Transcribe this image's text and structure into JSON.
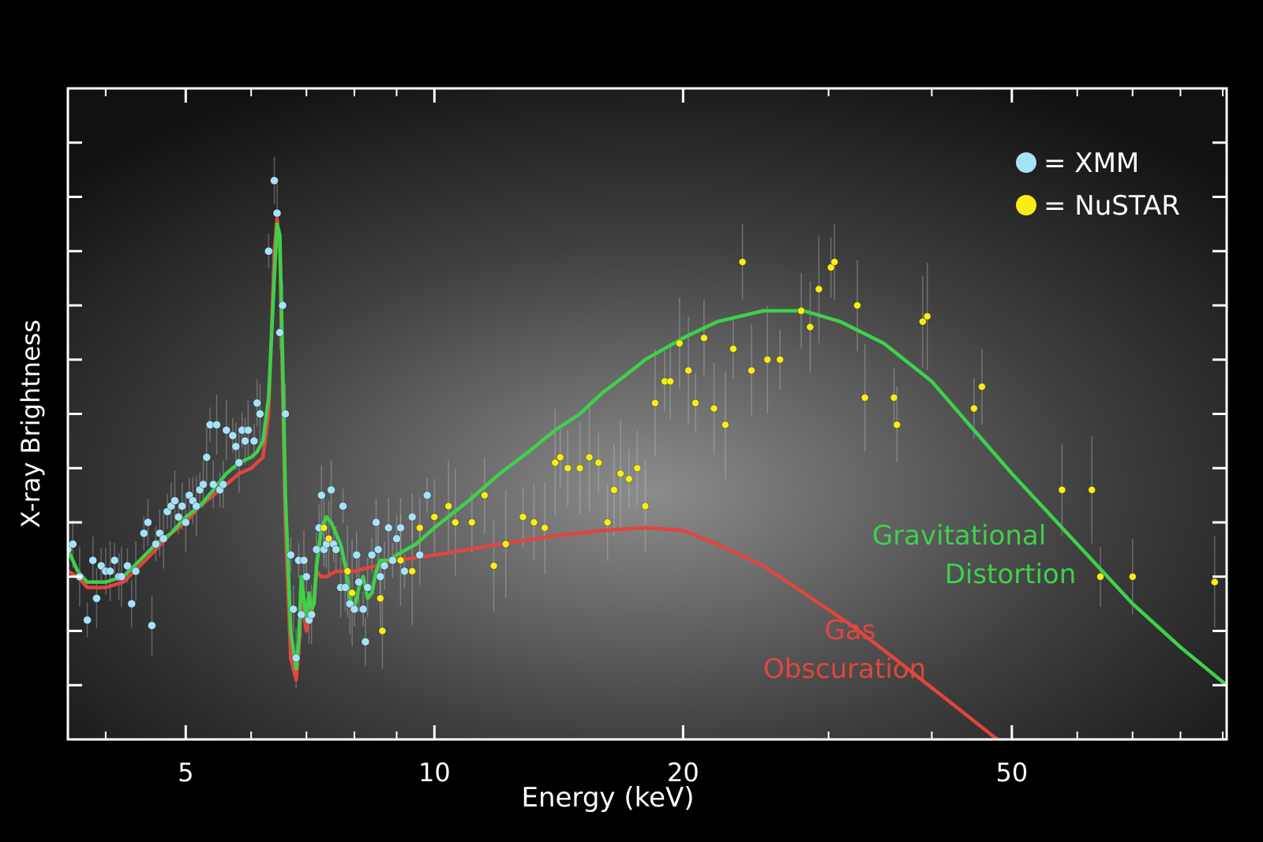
{
  "chart_data": {
    "type": "scatter",
    "title": "",
    "xlabel": "Energy (keV)",
    "ylabel": "X-ray Brightness",
    "xscale": "log",
    "xlim": [
      3.6,
      91
    ],
    "ylim": [
      0,
      12
    ],
    "x_tick_labels": [
      {
        "value": 5,
        "label": "5"
      },
      {
        "value": 10,
        "label": "10"
      },
      {
        "value": 20,
        "label": "20"
      },
      {
        "value": 50,
        "label": "50"
      }
    ],
    "x_minor_ticks": [
      4,
      6,
      7,
      8,
      9,
      30,
      40,
      60,
      70,
      80,
      90
    ],
    "y_ticks": [
      1,
      2,
      3,
      4,
      5,
      6,
      7,
      8,
      9,
      10,
      11
    ],
    "grid": false,
    "legend": {
      "position": "top-right",
      "entries": [
        {
          "label": "= XMM",
          "color": "#a6e2f8"
        },
        {
          "label": "= NuSTAR",
          "color": "#f8ee16"
        }
      ]
    },
    "colors": {
      "xmm": "#a6e2f8",
      "nustar": "#f8ee16",
      "gravitational": "#3ed14a",
      "gas": "#e0463e",
      "background_center": "#808080"
    },
    "series": [
      {
        "name": "Gravitational Distortion",
        "kind": "line",
        "color": "#3ed14a",
        "points": [
          [
            3.6,
            3.5
          ],
          [
            3.7,
            3.1
          ],
          [
            3.8,
            2.9
          ],
          [
            4.0,
            2.9
          ],
          [
            4.2,
            3.0
          ],
          [
            4.4,
            3.3
          ],
          [
            4.6,
            3.6
          ],
          [
            4.8,
            3.8
          ],
          [
            5.0,
            4.1
          ],
          [
            5.2,
            4.3
          ],
          [
            5.4,
            4.6
          ],
          [
            5.6,
            4.9
          ],
          [
            5.8,
            5.1
          ],
          [
            6.0,
            5.2
          ],
          [
            6.1,
            5.3
          ],
          [
            6.2,
            5.5
          ],
          [
            6.3,
            6.3
          ],
          [
            6.4,
            8.5
          ],
          [
            6.45,
            9.5
          ],
          [
            6.5,
            9.3
          ],
          [
            6.55,
            7.0
          ],
          [
            6.6,
            4.5
          ],
          [
            6.7,
            2.0
          ],
          [
            6.8,
            1.3
          ],
          [
            6.85,
            1.8
          ],
          [
            6.9,
            3.0
          ],
          [
            6.95,
            2.6
          ],
          [
            7.0,
            2.2
          ],
          [
            7.05,
            2.7
          ],
          [
            7.1,
            2.4
          ],
          [
            7.15,
            2.5
          ],
          [
            7.2,
            3.2
          ],
          [
            7.3,
            3.9
          ],
          [
            7.4,
            4.1
          ],
          [
            7.5,
            4.0
          ],
          [
            7.6,
            3.8
          ],
          [
            7.7,
            3.6
          ],
          [
            7.8,
            3.2
          ],
          [
            7.9,
            2.6
          ],
          [
            8.0,
            2.4
          ],
          [
            8.1,
            2.8
          ],
          [
            8.2,
            3.0
          ],
          [
            8.3,
            2.6
          ],
          [
            8.4,
            2.7
          ],
          [
            8.5,
            3.1
          ],
          [
            8.6,
            3.3
          ],
          [
            8.8,
            3.3
          ],
          [
            9.0,
            3.4
          ],
          [
            9.5,
            3.6
          ],
          [
            10,
            3.9
          ],
          [
            11,
            4.4
          ],
          [
            12,
            4.9
          ],
          [
            13,
            5.3
          ],
          [
            14,
            5.7
          ],
          [
            15,
            6.0
          ],
          [
            16,
            6.4
          ],
          [
            17,
            6.7
          ],
          [
            18,
            7.0
          ],
          [
            20,
            7.4
          ],
          [
            22,
            7.7
          ],
          [
            25,
            7.9
          ],
          [
            28,
            7.9
          ],
          [
            31,
            7.7
          ],
          [
            35,
            7.3
          ],
          [
            40,
            6.6
          ],
          [
            45,
            5.7
          ],
          [
            50,
            4.9
          ],
          [
            60,
            3.6
          ],
          [
            70,
            2.5
          ],
          [
            80,
            1.7
          ],
          [
            91,
            1.0
          ]
        ]
      },
      {
        "name": "Gas Obscuration",
        "kind": "line",
        "color": "#e0463e",
        "points": [
          [
            3.6,
            3.1
          ],
          [
            3.7,
            3.0
          ],
          [
            3.8,
            2.8
          ],
          [
            4.0,
            2.8
          ],
          [
            4.2,
            2.9
          ],
          [
            4.4,
            3.2
          ],
          [
            4.6,
            3.5
          ],
          [
            4.8,
            3.8
          ],
          [
            5.0,
            4.0
          ],
          [
            5.2,
            4.3
          ],
          [
            5.4,
            4.5
          ],
          [
            5.6,
            4.7
          ],
          [
            5.8,
            4.9
          ],
          [
            6.0,
            5.0
          ],
          [
            6.1,
            5.1
          ],
          [
            6.2,
            5.2
          ],
          [
            6.3,
            6.0
          ],
          [
            6.4,
            9.0
          ],
          [
            6.45,
            9.6
          ],
          [
            6.5,
            9.0
          ],
          [
            6.55,
            6.5
          ],
          [
            6.6,
            4.0
          ],
          [
            6.7,
            1.5
          ],
          [
            6.8,
            1.1
          ],
          [
            6.85,
            1.6
          ],
          [
            6.9,
            2.7
          ],
          [
            6.95,
            2.3
          ],
          [
            7.0,
            2.0
          ],
          [
            7.05,
            2.4
          ],
          [
            7.1,
            2.3
          ],
          [
            7.15,
            2.6
          ],
          [
            7.2,
            3.1
          ],
          [
            7.3,
            3.0
          ],
          [
            7.4,
            3.0
          ],
          [
            7.6,
            3.1
          ],
          [
            7.8,
            3.1
          ],
          [
            8.0,
            3.1
          ],
          [
            8.5,
            3.2
          ],
          [
            9,
            3.3
          ],
          [
            10,
            3.4
          ],
          [
            11,
            3.5
          ],
          [
            12,
            3.6
          ],
          [
            14,
            3.75
          ],
          [
            16,
            3.85
          ],
          [
            18,
            3.9
          ],
          [
            20,
            3.85
          ],
          [
            22,
            3.6
          ],
          [
            25,
            3.2
          ],
          [
            28,
            2.7
          ],
          [
            32,
            2.1
          ],
          [
            36,
            1.5
          ],
          [
            42,
            0.7
          ],
          [
            48,
            0.0
          ]
        ]
      },
      {
        "name": "= XMM",
        "kind": "scatter",
        "color": "#a6e2f8",
        "points": [
          [
            3.6,
            3.5
          ],
          [
            3.65,
            3.6
          ],
          [
            3.72,
            3.0
          ],
          [
            3.8,
            2.2
          ],
          [
            3.86,
            3.3
          ],
          [
            3.9,
            2.6
          ],
          [
            3.95,
            3.2
          ],
          [
            4.0,
            3.1
          ],
          [
            4.05,
            3.1
          ],
          [
            4.1,
            3.3
          ],
          [
            4.15,
            3.0
          ],
          [
            4.18,
            3.0
          ],
          [
            4.25,
            3.2
          ],
          [
            4.3,
            2.5
          ],
          [
            4.35,
            3.1
          ],
          [
            4.45,
            3.8
          ],
          [
            4.5,
            4.0
          ],
          [
            4.55,
            2.1
          ],
          [
            4.6,
            3.6
          ],
          [
            4.65,
            3.8
          ],
          [
            4.7,
            3.7
          ],
          [
            4.75,
            4.2
          ],
          [
            4.8,
            4.3
          ],
          [
            4.85,
            4.4
          ],
          [
            4.9,
            4.1
          ],
          [
            4.95,
            4.3
          ],
          [
            5.0,
            4.0
          ],
          [
            5.05,
            4.5
          ],
          [
            5.1,
            4.4
          ],
          [
            5.15,
            4.3
          ],
          [
            5.2,
            4.6
          ],
          [
            5.25,
            4.7
          ],
          [
            5.3,
            5.2
          ],
          [
            5.35,
            5.8
          ],
          [
            5.4,
            4.7
          ],
          [
            5.45,
            5.8
          ],
          [
            5.5,
            4.6
          ],
          [
            5.55,
            4.7
          ],
          [
            5.6,
            5.7
          ],
          [
            5.7,
            5.6
          ],
          [
            5.75,
            5.4
          ],
          [
            5.8,
            5.1
          ],
          [
            5.85,
            5.7
          ],
          [
            5.9,
            5.5
          ],
          [
            5.95,
            5.7
          ],
          [
            6.05,
            5.5
          ],
          [
            6.1,
            6.2
          ],
          [
            6.15,
            6.0
          ],
          [
            6.3,
            9.0
          ],
          [
            6.4,
            10.3
          ],
          [
            6.45,
            9.7
          ],
          [
            6.5,
            7.5
          ],
          [
            6.55,
            8.0
          ],
          [
            6.6,
            6.0
          ],
          [
            6.7,
            3.4
          ],
          [
            6.75,
            2.4
          ],
          [
            6.8,
            1.5
          ],
          [
            6.85,
            3.3
          ],
          [
            6.9,
            2.3
          ],
          [
            6.95,
            3.3
          ],
          [
            7.0,
            3.0
          ],
          [
            7.05,
            2.2
          ],
          [
            7.1,
            2.3
          ],
          [
            7.2,
            3.5
          ],
          [
            7.25,
            3.9
          ],
          [
            7.3,
            4.5
          ],
          [
            7.35,
            3.5
          ],
          [
            7.4,
            3.6
          ],
          [
            7.5,
            4.6
          ],
          [
            7.55,
            3.6
          ],
          [
            7.6,
            3.5
          ],
          [
            7.7,
            2.8
          ],
          [
            7.75,
            4.3
          ],
          [
            7.8,
            2.8
          ],
          [
            7.9,
            2.5
          ],
          [
            8.0,
            2.4
          ],
          [
            8.05,
            3.4
          ],
          [
            8.1,
            2.9
          ],
          [
            8.2,
            2.4
          ],
          [
            8.25,
            1.8
          ],
          [
            8.3,
            2.8
          ],
          [
            8.4,
            3.4
          ],
          [
            8.5,
            4.0
          ],
          [
            8.55,
            3.5
          ],
          [
            8.6,
            3.0
          ],
          [
            8.7,
            3.2
          ],
          [
            8.8,
            3.9
          ],
          [
            8.9,
            3.3
          ],
          [
            9.0,
            3.7
          ],
          [
            9.1,
            3.9
          ],
          [
            9.2,
            3.1
          ],
          [
            9.4,
            4.1
          ],
          [
            9.6,
            3.4
          ],
          [
            9.8,
            4.5
          ]
        ]
      },
      {
        "name": "= NuSTAR",
        "kind": "scatter",
        "color": "#f8ee16",
        "points": [
          [
            7.35,
            3.9
          ],
          [
            7.45,
            3.7
          ],
          [
            7.85,
            3.1
          ],
          [
            7.95,
            2.7
          ],
          [
            8.6,
            2.6
          ],
          [
            8.65,
            2.0
          ],
          [
            9.1,
            3.3
          ],
          [
            9.4,
            3.1
          ],
          [
            9.6,
            3.9
          ],
          [
            10.0,
            4.1
          ],
          [
            10.4,
            4.3
          ],
          [
            10.6,
            4.0
          ],
          [
            11.1,
            4.0
          ],
          [
            11.5,
            4.5
          ],
          [
            11.8,
            3.2
          ],
          [
            12.2,
            3.6
          ],
          [
            12.8,
            4.1
          ],
          [
            13.2,
            4.0
          ],
          [
            13.6,
            3.9
          ],
          [
            14.0,
            5.1
          ],
          [
            14.2,
            5.2
          ],
          [
            14.5,
            5.0
          ],
          [
            15.0,
            5.0
          ],
          [
            15.4,
            5.2
          ],
          [
            15.8,
            5.1
          ],
          [
            16.2,
            4.0
          ],
          [
            16.5,
            4.6
          ],
          [
            16.8,
            4.9
          ],
          [
            17.2,
            4.8
          ],
          [
            17.6,
            5.0
          ],
          [
            18.0,
            4.3
          ],
          [
            18.5,
            6.2
          ],
          [
            19.0,
            6.6
          ],
          [
            19.3,
            6.6
          ],
          [
            19.8,
            7.3
          ],
          [
            20.3,
            6.8
          ],
          [
            20.7,
            6.2
          ],
          [
            21.2,
            7.4
          ],
          [
            21.8,
            6.1
          ],
          [
            22.5,
            5.8
          ],
          [
            23.0,
            7.2
          ],
          [
            23.6,
            8.8
          ],
          [
            24.2,
            6.8
          ],
          [
            25.3,
            7.0
          ],
          [
            26.2,
            7.0
          ],
          [
            27.8,
            7.9
          ],
          [
            28.5,
            7.6
          ],
          [
            29.2,
            8.3
          ],
          [
            30.2,
            8.7
          ],
          [
            30.5,
            8.8
          ],
          [
            32.5,
            8.0
          ],
          [
            33.2,
            6.3
          ],
          [
            36.0,
            6.3
          ],
          [
            36.3,
            5.8
          ],
          [
            39.0,
            7.7
          ],
          [
            39.5,
            7.8
          ],
          [
            45.0,
            6.1
          ],
          [
            46.0,
            6.5
          ],
          [
            57.5,
            4.6
          ],
          [
            62.5,
            4.6
          ],
          [
            64.0,
            3.0
          ],
          [
            70.0,
            3.0
          ],
          [
            88.0,
            2.9
          ]
        ]
      }
    ],
    "annotations": [
      {
        "text": "Gravitational",
        "color": "#3ed14a"
      },
      {
        "text": "Distortion",
        "color": "#3ed14a"
      },
      {
        "text": "Gas",
        "color": "#e0463e"
      },
      {
        "text": "Obscuration",
        "color": "#e0463e"
      }
    ]
  }
}
